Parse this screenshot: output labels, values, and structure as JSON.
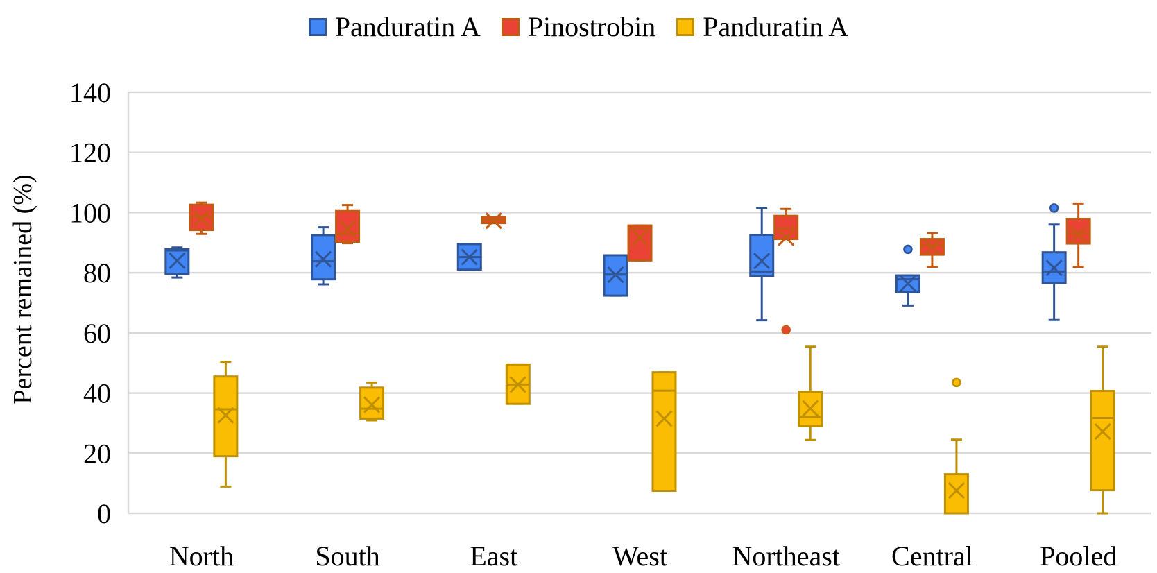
{
  "chart_data": {
    "type": "box",
    "title": "",
    "xlabel": "",
    "ylabel": "Percent remained (%)",
    "ylim": [
      0,
      140
    ],
    "yticks": [
      0,
      20,
      40,
      60,
      80,
      100,
      120,
      140
    ],
    "grid": true,
    "legend_position": "top-center",
    "categories": [
      "North",
      "South",
      "East",
      "West",
      "Northeast",
      "Central",
      "Pooled"
    ],
    "series": [
      {
        "name": "Panduratin A",
        "fill": "#4285F4",
        "stroke": "#2F5597",
        "boxes": [
          {
            "min": 78.4,
            "q1": 79.6,
            "median": 87.4,
            "q3": 87.8,
            "max": 88.4,
            "mean": 84.0,
            "outliers": []
          },
          {
            "min": 76.1,
            "q1": 77.8,
            "median": 83.8,
            "q3": 92.5,
            "max": 95.1,
            "mean": 84.5,
            "outliers": []
          },
          {
            "min": 81.0,
            "q1": 81.0,
            "median": 85.2,
            "q3": 89.5,
            "max": 89.5,
            "mean": 85.2,
            "outliers": []
          },
          {
            "min": 72.4,
            "q1": 72.4,
            "median": 79.4,
            "q3": 85.8,
            "max": 85.8,
            "mean": 79.3,
            "outliers": []
          },
          {
            "min": 64.2,
            "q1": 78.9,
            "median": 80.4,
            "q3": 92.6,
            "max": 101.5,
            "mean": 83.9,
            "outliers": []
          },
          {
            "min": 69.1,
            "q1": 73.5,
            "median": 77.8,
            "q3": 79.1,
            "max": 79.1,
            "mean": 76.4,
            "outliers": [
              87.8
            ]
          },
          {
            "min": 64.3,
            "q1": 76.6,
            "median": 80.4,
            "q3": 86.8,
            "max": 96.0,
            "mean": 81.6,
            "outliers": [
              101.5
            ]
          }
        ]
      },
      {
        "name": "Pinostrobin",
        "fill": "#EA4335",
        "stroke": "#C55A11",
        "boxes": [
          {
            "min": 92.9,
            "q1": 94.2,
            "median": 98.6,
            "q3": 102.6,
            "max": 103.3,
            "mean": 98.0,
            "outliers": []
          },
          {
            "min": 89.8,
            "q1": 90.3,
            "median": 93.0,
            "q3": 100.5,
            "max": 102.5,
            "mean": 94.7,
            "outliers": []
          },
          {
            "min": 96.5,
            "q1": 96.5,
            "median": 97.5,
            "q3": 98.4,
            "max": 98.4,
            "mean": 97.3,
            "outliers": []
          },
          {
            "min": 84.1,
            "q1": 84.1,
            "median": 94.7,
            "q3": 95.7,
            "max": 95.7,
            "mean": 91.6,
            "outliers": []
          },
          {
            "min": 91.2,
            "q1": 91.2,
            "median": 94.8,
            "q3": 98.9,
            "max": 101.2,
            "mean": 91.6,
            "outliers": [
              61.0
            ]
          },
          {
            "min": 82.0,
            "q1": 86.0,
            "median": 89.1,
            "q3": 91.2,
            "max": 93.1,
            "mean": 88.5,
            "outliers": []
          },
          {
            "min": 82.0,
            "q1": 89.7,
            "median": 93.1,
            "q3": 97.9,
            "max": 103.0,
            "mean": 92.8,
            "outliers": []
          }
        ]
      },
      {
        "name": "Panduratin A",
        "fill": "#FBBC04",
        "stroke": "#BF9000",
        "boxes": [
          {
            "min": 8.9,
            "q1": 19.0,
            "median": 34.6,
            "q3": 45.5,
            "max": 50.4,
            "mean": 32.6,
            "outliers": []
          },
          {
            "min": 30.9,
            "q1": 31.5,
            "median": 34.8,
            "q3": 41.8,
            "max": 43.5,
            "mean": 36.1,
            "outliers": []
          },
          {
            "min": 36.4,
            "q1": 36.4,
            "median": 42.8,
            "q3": 49.5,
            "max": 49.5,
            "mean": 42.8,
            "outliers": []
          },
          {
            "min": 7.5,
            "q1": 7.5,
            "median": 40.8,
            "q3": 46.9,
            "max": 46.9,
            "mean": 31.5,
            "outliers": []
          },
          {
            "min": 24.4,
            "q1": 29.0,
            "median": 32.1,
            "q3": 40.4,
            "max": 55.4,
            "mean": 34.9,
            "outliers": []
          },
          {
            "min": 0.0,
            "q1": 0.0,
            "median": 0.0,
            "q3": 13.0,
            "max": 24.5,
            "mean": 7.6,
            "outliers": [
              43.5
            ]
          },
          {
            "min": 0.0,
            "q1": 7.7,
            "median": 31.7,
            "q3": 40.7,
            "max": 55.4,
            "mean": 27.2,
            "outliers": []
          }
        ]
      }
    ]
  },
  "colors": {
    "gridline": "#D9D9D9",
    "text": "#000000"
  }
}
